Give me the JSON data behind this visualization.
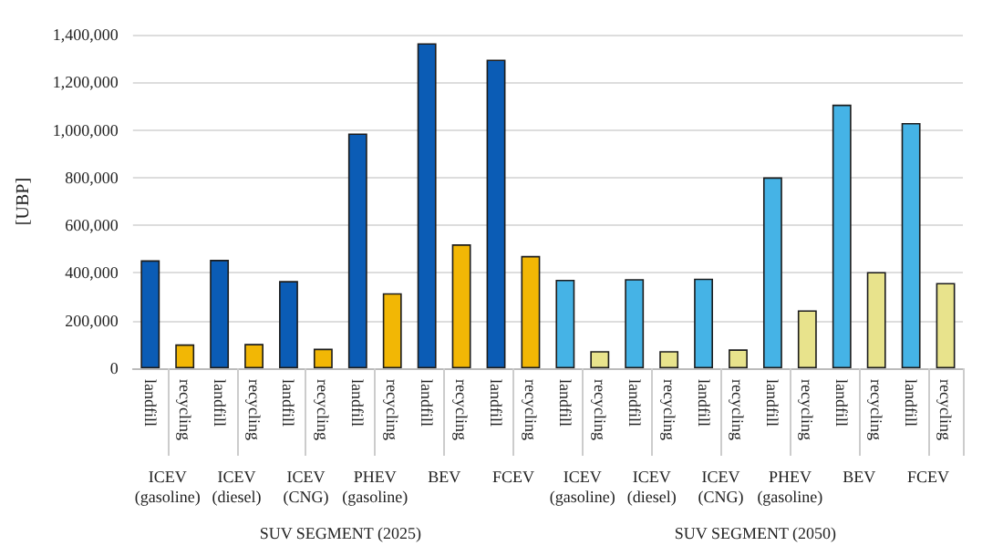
{
  "chart_data": {
    "type": "bar",
    "ylabel": "[UBP]",
    "categories": [
      "landfill",
      "recycling",
      "landfill",
      "recycling",
      "landfill",
      "recycling",
      "landfill",
      "recycling",
      "landfill",
      "recycling",
      "landfill",
      "recycling",
      "landfill",
      "recycling",
      "landfill",
      "recycling",
      "landfill",
      "recycling",
      "landfill",
      "recycling",
      "landfill",
      "recycling",
      "landfill",
      "recycling"
    ],
    "values": [
      453000,
      100000,
      455000,
      102000,
      366000,
      82000,
      985000,
      315000,
      1364000,
      520000,
      1295000,
      471000,
      371000,
      72000,
      374000,
      72000,
      376000,
      79000,
      801000,
      243000,
      1106000,
      404000,
      1029000,
      358000
    ],
    "colors": [
      "#0b5cb5",
      "#f2b705",
      "#0b5cb5",
      "#f2b705",
      "#0b5cb5",
      "#f2b705",
      "#0b5cb5",
      "#f2b705",
      "#0b5cb5",
      "#f2b705",
      "#0b5cb5",
      "#f2b705",
      "#45b3e6",
      "#e8e38c",
      "#45b3e6",
      "#e8e38c",
      "#45b3e6",
      "#e8e38c",
      "#45b3e6",
      "#e8e38c",
      "#45b3e6",
      "#e8e38c",
      "#45b3e6",
      "#e8e38c"
    ],
    "ylim": [
      0,
      1400000
    ],
    "yticks": [
      {
        "value": 0,
        "label": "0"
      },
      {
        "value": 200000,
        "label": "200,000"
      },
      {
        "value": 400000,
        "label": "400,000"
      },
      {
        "value": 600000,
        "label": "600,000"
      },
      {
        "value": 800000,
        "label": "800,000"
      },
      {
        "value": 1000000,
        "label": "1,000,000"
      },
      {
        "value": 1200000,
        "label": "1,200,000"
      },
      {
        "value": 1400000,
        "label": "1,400,000"
      }
    ],
    "grid": "y",
    "annotations": [
      "ICEV (gasoline)",
      "ICEV (diesel)",
      "ICEV (CNG)",
      "PHEV (gasoline)",
      "BEV",
      "FCEV",
      "ICEV (gasoline)",
      "ICEV (diesel)",
      "ICEV (CNG)",
      "PHEV (gasoline)",
      "BEV",
      "FCEV",
      "SUV SEGMENT (2025)",
      "SUV SEGMENT (2050)"
    ]
  }
}
